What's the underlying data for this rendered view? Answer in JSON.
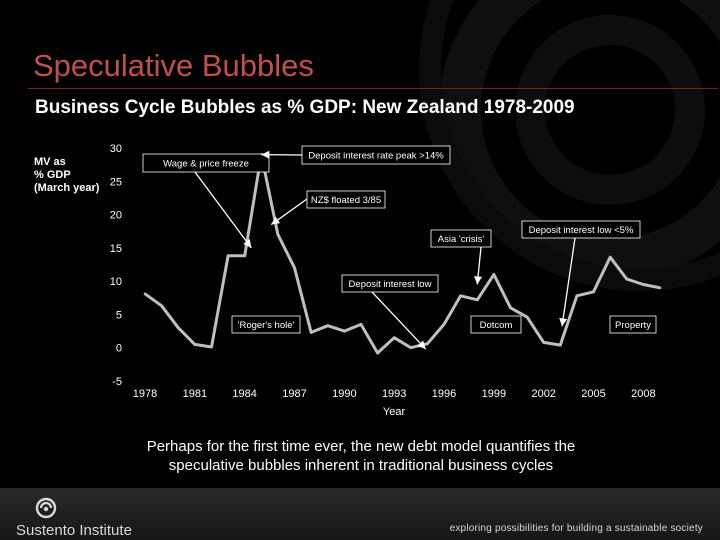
{
  "slide": {
    "title": "Speculative Bubbles",
    "subtitle": "Business Cycle Bubbles as % GDP: New Zealand 1978-2009",
    "caption": "Perhaps for the first time ever, the new debt model quantifies the speculative bubbles inherent in traditional business cycles"
  },
  "footer": {
    "brand": "Sustento Institute",
    "tagline": "exploring possibilities for building a sustainable society"
  },
  "colors": {
    "title": "#c0504d",
    "line": "#bfbfbf",
    "text": "#ffffff"
  },
  "chart_data": {
    "type": "line",
    "title": "",
    "ylabel_lines": [
      "MV as",
      "% GDP",
      "(March year)"
    ],
    "xlabel": "Year",
    "ylim": [
      -5,
      30
    ],
    "xlim": [
      1978,
      2009
    ],
    "yticks": [
      30,
      25,
      20,
      15,
      10,
      5,
      0,
      -5
    ],
    "xticks": [
      "1978",
      "1981",
      "1984",
      "1987",
      "1990",
      "1993",
      "1996",
      "1999",
      "2002",
      "2005",
      "2008"
    ],
    "x": [
      1978,
      1979,
      1980,
      1981,
      1982,
      1983,
      1984,
      1985,
      1986,
      1987,
      1988,
      1989,
      1990,
      1991,
      1992,
      1993,
      1994,
      1995,
      1996,
      1997,
      1998,
      1999,
      2000,
      2001,
      2002,
      2003,
      2004,
      2005,
      2006,
      2007,
      2008,
      2009
    ],
    "values": [
      8.1,
      6.3,
      3.0,
      0.5,
      0.1,
      13.8,
      13.8,
      29.0,
      17.0,
      12.0,
      2.3,
      3.3,
      2.5,
      3.5,
      -0.8,
      1.5,
      0.0,
      0.6,
      3.5,
      7.8,
      7.2,
      11.0,
      6.0,
      4.6,
      0.8,
      0.4,
      7.8,
      8.4,
      13.6,
      10.3,
      9.5,
      9.0
    ],
    "annotations": [
      {
        "id": "wage",
        "text": "Wage & price freeze",
        "arrow_x": 1984.4,
        "arrow_y": 15.0
      },
      {
        "id": "deposit-peak",
        "text": "Deposit interest rate peak >14%",
        "arrow_x": 1985.0,
        "arrow_y": 29.0
      },
      {
        "id": "nzd",
        "text": "NZ$ floated 3/85",
        "arrow_x": 1985.6,
        "arrow_y": 18.5
      },
      {
        "id": "asia",
        "text": "Asia 'crisis'",
        "arrow_x": 1998.0,
        "arrow_y": 9.5
      },
      {
        "id": "deposit-low-5",
        "text": "Deposit interest low <5%",
        "arrow_x": 2003.1,
        "arrow_y": 3.2
      },
      {
        "id": "deposit-low",
        "text": "Deposit interest low",
        "arrow_x": 1994.9,
        "arrow_y": -0.2
      },
      {
        "id": "rogers",
        "text": "'Roger's hole'",
        "arrow_x": 1990.7,
        "arrow_y": 3.5
      },
      {
        "id": "dotcom",
        "text": "Dotcom",
        "arrow_x": 1999.0,
        "arrow_y": 3.5
      },
      {
        "id": "property",
        "text": "Property",
        "arrow_x": 2006.0,
        "arrow_y": 3.5
      }
    ]
  }
}
